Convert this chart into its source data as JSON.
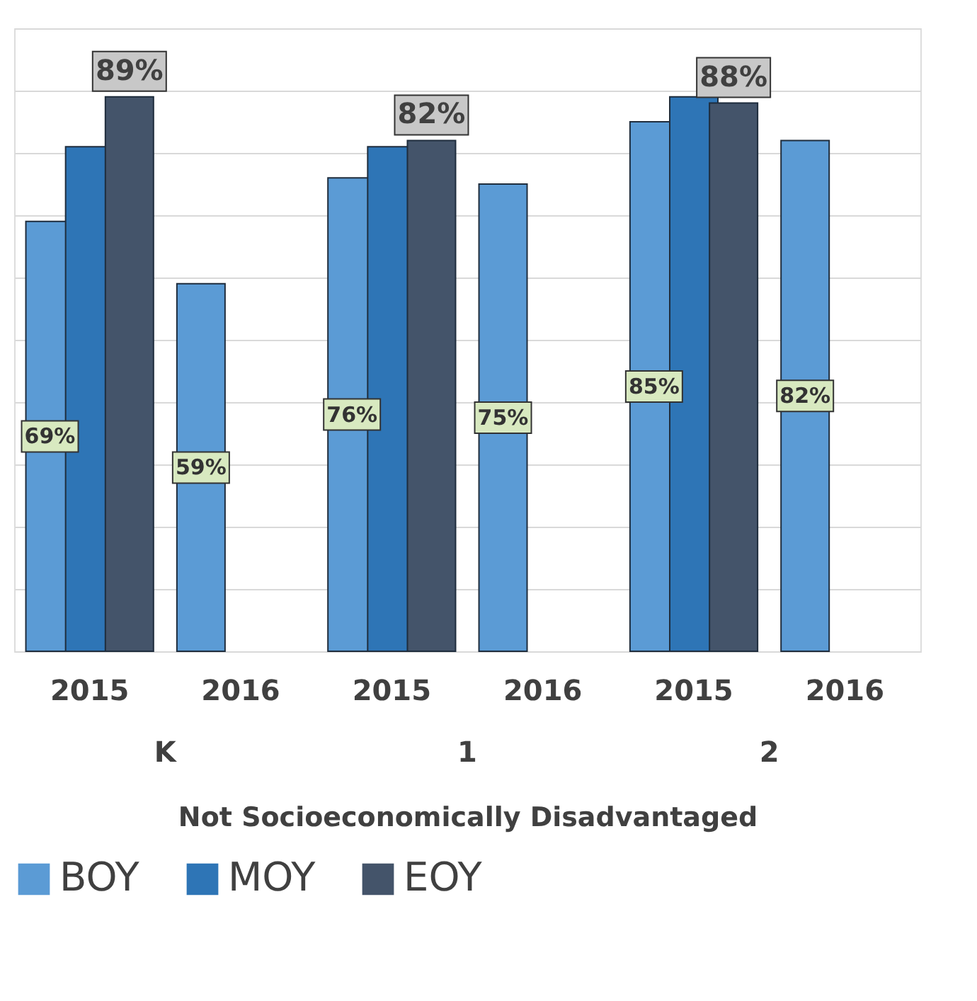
{
  "chart_data": {
    "type": "bar",
    "categories": [
      "2015",
      "2016",
      "2015",
      "2016",
      "2015",
      "2016"
    ],
    "annotations": [
      "K",
      "1",
      "2"
    ],
    "xlabel": "Not Socioeconomically Disadvantaged",
    "series": [
      {
        "name": "BOY",
        "color": "#5b9bd5",
        "values": [
          69,
          59,
          76,
          75,
          85,
          82
        ],
        "value_labels": [
          "69%",
          "59%",
          "76%",
          "75%",
          "85%",
          "82%"
        ]
      },
      {
        "name": "MOY",
        "color": "#2e75b6",
        "values": [
          81,
          null,
          81,
          null,
          89,
          null
        ]
      },
      {
        "name": "EOY",
        "color": "#44546a",
        "values": [
          89,
          null,
          82,
          null,
          88,
          null
        ],
        "value_labels": [
          "89%",
          null,
          "82%",
          null,
          "88%",
          null
        ]
      }
    ],
    "ylim": [
      0,
      100
    ],
    "yticks": [
      {
        "value": 0,
        "label": null
      },
      {
        "value": 10,
        "label": null
      },
      {
        "value": 20,
        "label": null
      },
      {
        "value": 30,
        "label": null
      },
      {
        "value": 40,
        "label": null
      },
      {
        "value": 50,
        "label": null
      },
      {
        "value": 60,
        "label": null
      },
      {
        "value": 70,
        "label": null
      },
      {
        "value": 80,
        "label": null
      },
      {
        "value": 90,
        "label": null
      },
      {
        "value": 100,
        "label": null
      }
    ],
    "grid": "y",
    "legend": "bottom",
    "tick_labels": "x"
  }
}
